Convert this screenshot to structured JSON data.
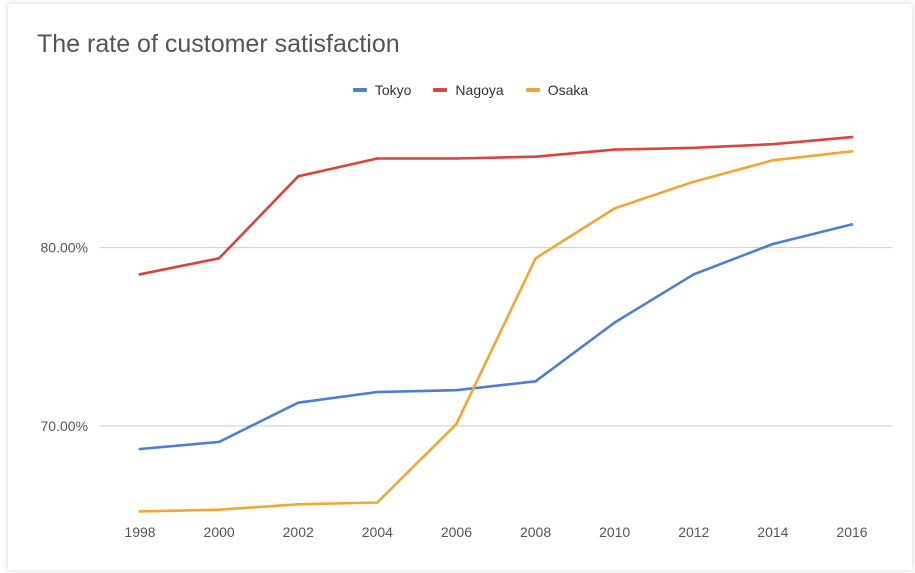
{
  "chart_data": {
    "type": "line",
    "title": "The rate of customer satisfaction",
    "xlabel": "",
    "ylabel": "",
    "x": [
      1998,
      2000,
      2002,
      2004,
      2006,
      2008,
      2010,
      2012,
      2014,
      2016
    ],
    "x_tick_labels": [
      "1998",
      "2000",
      "2002",
      "2004",
      "2006",
      "2008",
      "2010",
      "2012",
      "2014",
      "2016"
    ],
    "y_tick_labels": [
      "70.00%",
      "80.00%"
    ],
    "y_ticks": [
      70,
      80
    ],
    "ylim": [
      65,
      88
    ],
    "grid": true,
    "legend": "top",
    "series": [
      {
        "name": "Tokyo",
        "color": "#4a7fd4",
        "values": [
          68.7,
          69.1,
          71.3,
          71.9,
          72.0,
          72.5,
          75.8,
          78.5,
          80.2,
          81.3
        ]
      },
      {
        "name": "Nagoya",
        "color": "#d9453c",
        "values": [
          78.5,
          79.4,
          84.0,
          85.0,
          85.0,
          85.1,
          85.5,
          85.6,
          85.8,
          86.2
        ]
      },
      {
        "name": "Osaka",
        "color": "#f2a633",
        "values": [
          65.2,
          65.3,
          65.6,
          65.7,
          70.1,
          79.4,
          82.2,
          83.7,
          84.9,
          85.4
        ]
      }
    ]
  }
}
